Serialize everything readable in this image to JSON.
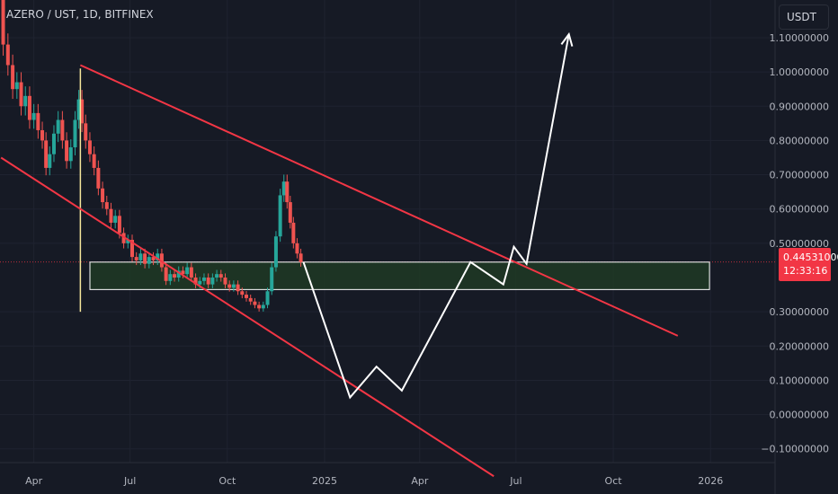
{
  "header": {
    "symbol": "AZERO / UST, 1D, BITFINEX"
  },
  "currency_button": {
    "label": "USDT"
  },
  "last_price": {
    "value": "0.44531000",
    "countdown": "12:33:16"
  },
  "colors": {
    "background": "#161a25",
    "channel_lines": "#f23645",
    "projection": "#ffffff",
    "zone_fill": "#1e3a24",
    "candle_up": "#26a69a",
    "candle_down": "#ef5350",
    "vertical_marker": "#f5e79b"
  },
  "chart_data": {
    "type": "candlestick",
    "symbol": "AZERO / UST",
    "interval": "1D",
    "exchange": "BITFINEX",
    "y_tick_labels": [
      "1.10000000",
      "1.00000000",
      "0.90000000",
      "0.80000000",
      "0.70000000",
      "0.60000000",
      "0.50000000",
      "0.30000000",
      "0.20000000",
      "0.10000000",
      "0.00000000",
      "−0.10000000"
    ],
    "y_tick_values": [
      1.1,
      1.0,
      0.9,
      0.8,
      0.7,
      0.6,
      0.5,
      0.3,
      0.2,
      0.1,
      0.0,
      -0.1
    ],
    "ylim": [
      -0.14,
      1.21
    ],
    "x_tick_labels": [
      "Apr",
      "Jul",
      "Oct",
      "2025",
      "Apr",
      "Jul",
      "Oct",
      "2026"
    ],
    "x_tick_dates": [
      "2024-04-01",
      "2024-07-01",
      "2024-10-01",
      "2025-01-01",
      "2025-04-01",
      "2025-07-01",
      "2025-10-01",
      "2026-01-01"
    ],
    "xlim": [
      "2024-02-29",
      "2026-03-03"
    ],
    "price_path": [
      [
        "2024-03-01",
        1.25
      ],
      [
        "2024-03-05",
        1.08
      ],
      [
        "2024-03-10",
        1.02
      ],
      [
        "2024-03-14",
        0.95
      ],
      [
        "2024-03-18",
        0.97
      ],
      [
        "2024-03-22",
        0.9
      ],
      [
        "2024-03-26",
        0.93
      ],
      [
        "2024-03-30",
        0.86
      ],
      [
        "2024-04-03",
        0.88
      ],
      [
        "2024-04-07",
        0.83
      ],
      [
        "2024-04-11",
        0.8
      ],
      [
        "2024-04-14",
        0.72
      ],
      [
        "2024-04-18",
        0.76
      ],
      [
        "2024-04-22",
        0.82
      ],
      [
        "2024-04-26",
        0.86
      ],
      [
        "2024-04-30",
        0.8
      ],
      [
        "2024-05-04",
        0.74
      ],
      [
        "2024-05-08",
        0.78
      ],
      [
        "2024-05-12",
        0.86
      ],
      [
        "2024-05-15",
        0.92
      ],
      [
        "2024-05-18",
        0.85
      ],
      [
        "2024-05-22",
        0.8
      ],
      [
        "2024-05-26",
        0.76
      ],
      [
        "2024-05-30",
        0.72
      ],
      [
        "2024-06-03",
        0.66
      ],
      [
        "2024-06-07",
        0.62
      ],
      [
        "2024-06-11",
        0.6
      ],
      [
        "2024-06-15",
        0.56
      ],
      [
        "2024-06-19",
        0.58
      ],
      [
        "2024-06-23",
        0.53
      ],
      [
        "2024-06-27",
        0.5
      ],
      [
        "2024-07-01",
        0.51
      ],
      [
        "2024-07-05",
        0.46
      ],
      [
        "2024-07-09",
        0.45
      ],
      [
        "2024-07-13",
        0.47
      ],
      [
        "2024-07-17",
        0.44
      ],
      [
        "2024-07-21",
        0.46
      ],
      [
        "2024-07-25",
        0.45
      ],
      [
        "2024-07-29",
        0.47
      ],
      [
        "2024-08-02",
        0.43
      ],
      [
        "2024-08-06",
        0.39
      ],
      [
        "2024-08-10",
        0.41
      ],
      [
        "2024-08-14",
        0.4
      ],
      [
        "2024-08-18",
        0.42
      ],
      [
        "2024-08-22",
        0.41
      ],
      [
        "2024-08-26",
        0.43
      ],
      [
        "2024-08-30",
        0.4
      ],
      [
        "2024-09-03",
        0.38
      ],
      [
        "2024-09-07",
        0.39
      ],
      [
        "2024-09-11",
        0.4
      ],
      [
        "2024-09-15",
        0.38
      ],
      [
        "2024-09-19",
        0.4
      ],
      [
        "2024-09-23",
        0.41
      ],
      [
        "2024-09-27",
        0.4
      ],
      [
        "2024-10-01",
        0.38
      ],
      [
        "2024-10-05",
        0.37
      ],
      [
        "2024-10-09",
        0.38
      ],
      [
        "2024-10-13",
        0.36
      ],
      [
        "2024-10-17",
        0.35
      ],
      [
        "2024-10-21",
        0.34
      ],
      [
        "2024-10-25",
        0.33
      ],
      [
        "2024-10-29",
        0.32
      ],
      [
        "2024-11-02",
        0.31
      ],
      [
        "2024-11-06",
        0.32
      ],
      [
        "2024-11-10",
        0.36
      ],
      [
        "2024-11-14",
        0.43
      ],
      [
        "2024-11-18",
        0.52
      ],
      [
        "2024-11-22",
        0.64
      ],
      [
        "2024-11-25",
        0.68
      ],
      [
        "2024-11-28",
        0.62
      ],
      [
        "2024-12-01",
        0.56
      ],
      [
        "2024-12-04",
        0.5
      ],
      [
        "2024-12-08",
        0.47
      ],
      [
        "2024-12-11",
        0.445
      ]
    ],
    "drawings": {
      "channel_upper": [
        [
          "2024-05-15",
          1.02
        ],
        [
          "2025-12-01",
          0.23
        ]
      ],
      "channel_lower": [
        [
          "2024-03-01",
          0.75
        ],
        [
          "2025-06-10",
          -0.18
        ]
      ],
      "support_zone": {
        "from": "2024-02-29",
        "to": "2025-12-31",
        "low": 0.365,
        "high": 0.445
      },
      "vertical_marker": {
        "date": "2024-05-15",
        "low": 0.3,
        "high": 1.01
      },
      "projection_path": [
        [
          "2024-12-12",
          0.445
        ],
        [
          "2025-01-25",
          0.05
        ],
        [
          "2025-02-19",
          0.14
        ],
        [
          "2025-03-15",
          0.07
        ],
        [
          "2025-05-19",
          0.445
        ],
        [
          "2025-06-19",
          0.38
        ],
        [
          "2025-06-29",
          0.49
        ],
        [
          "2025-07-11",
          0.44
        ],
        [
          "2025-08-20",
          1.11
        ]
      ]
    }
  }
}
